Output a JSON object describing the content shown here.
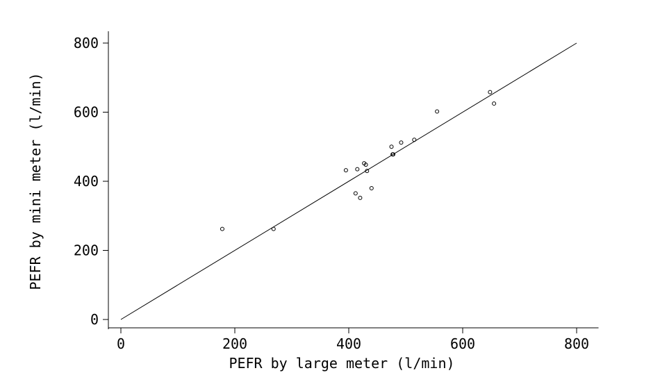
{
  "chart_data": {
    "type": "scatter",
    "xlabel": "PEFR by large meter (l/min)",
    "ylabel": "PEFR by mini meter (l/min)",
    "xlim": [
      0,
      820
    ],
    "ylim": [
      -20,
      830
    ],
    "xticks": [
      0,
      200,
      400,
      600,
      800
    ],
    "yticks": [
      0,
      200,
      400,
      600,
      800
    ],
    "grid": false,
    "series": [
      {
        "marker": "circle-open",
        "x": [
          178,
          268,
          395,
          412,
          415,
          420,
          427,
          430,
          432,
          440,
          475,
          477,
          478,
          492,
          515,
          555,
          648,
          655
        ],
        "y": [
          262,
          262,
          432,
          365,
          435,
          352,
          452,
          448,
          430,
          380,
          500,
          478,
          478,
          512,
          520,
          602,
          658,
          625
        ]
      }
    ],
    "reference_line": {
      "from": [
        0,
        0
      ],
      "to": [
        800,
        800
      ],
      "meaning": "line of equality y = x"
    }
  }
}
